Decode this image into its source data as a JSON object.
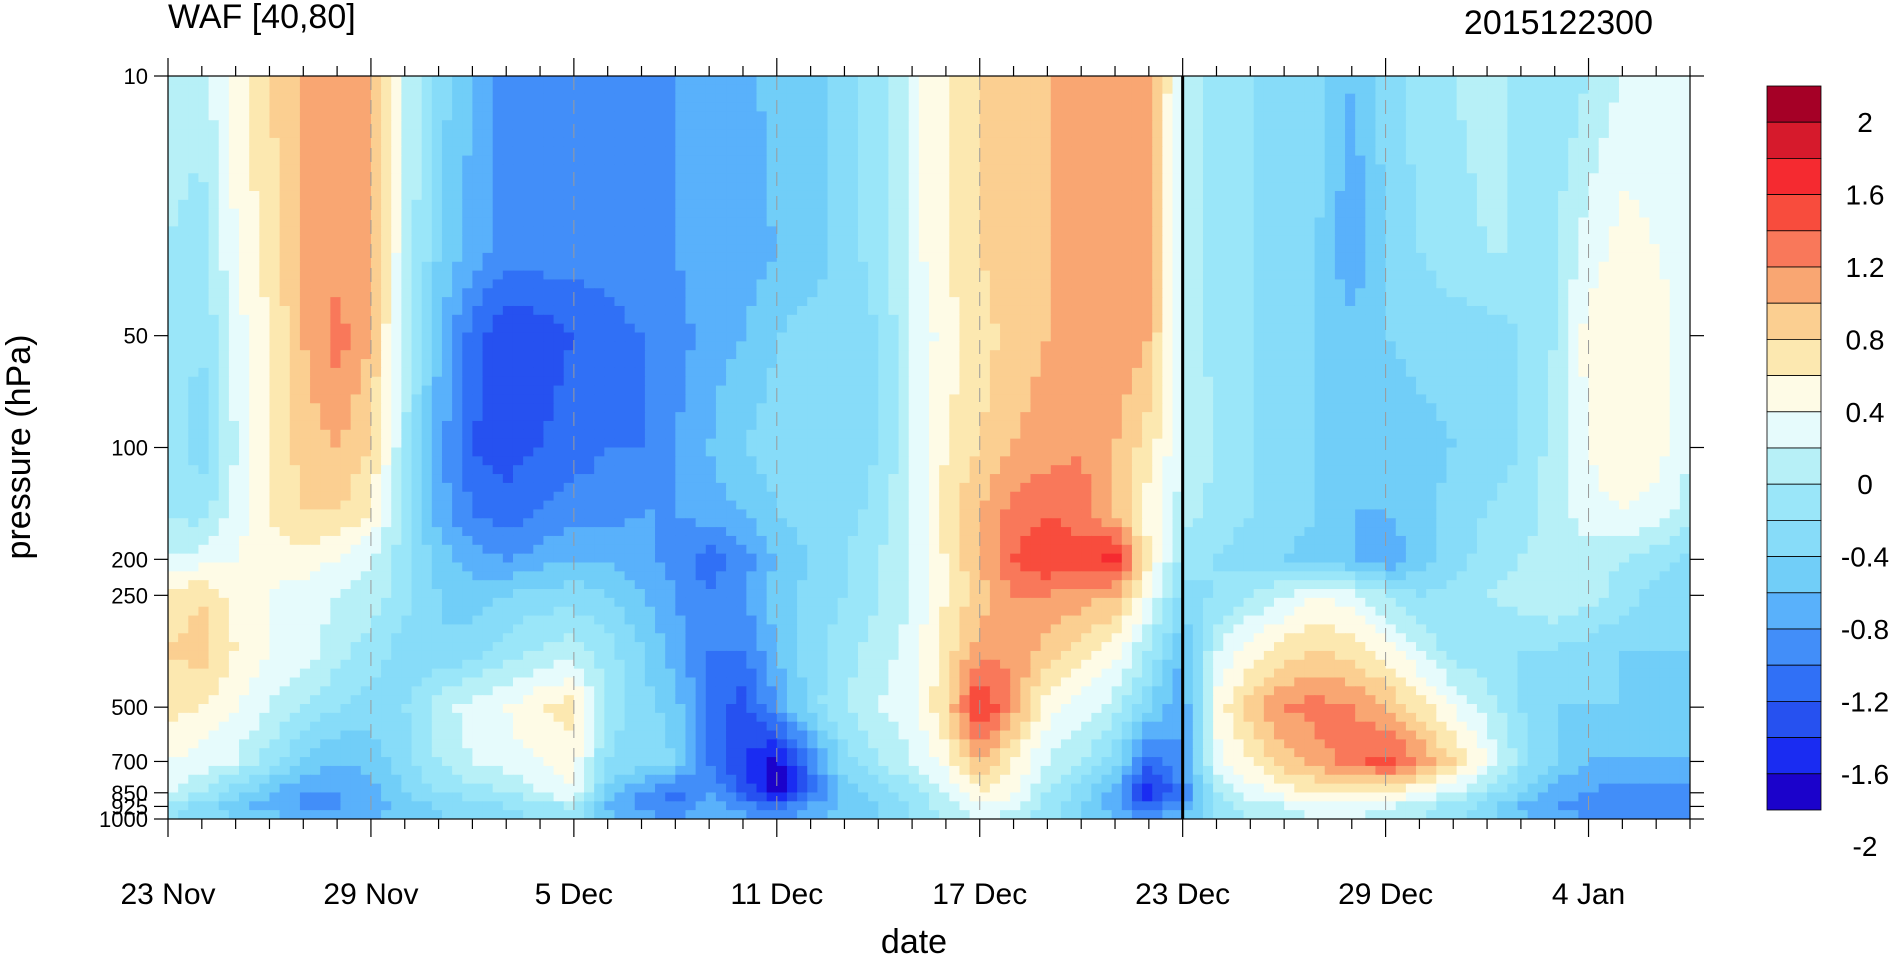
{
  "title_left": "WAF [40,80]",
  "title_right": "2015122300",
  "chart_data": {
    "type": "heatmap",
    "xlabel": "date",
    "ylabel": "pressure (hPa)",
    "x_tick_labels": [
      "23 Nov",
      "29 Nov",
      "5 Dec",
      "11 Dec",
      "17 Dec",
      "23 Dec",
      "29 Dec",
      "4 Jan"
    ],
    "x_tick_day_offsets": [
      0,
      6,
      12,
      18,
      24,
      30,
      36,
      42
    ],
    "x_range_days": [
      0,
      45
    ],
    "y_scale": "log",
    "y_range": [
      1000,
      10
    ],
    "y_tick_labels": [
      "10",
      "50",
      "100",
      "200",
      "250",
      "500",
      "700",
      "850",
      "925",
      "1000"
    ],
    "y_tick_values": [
      10,
      50,
      100,
      200,
      250,
      500,
      700,
      850,
      925,
      1000
    ],
    "marked_date": "23 Dec",
    "colorbar": {
      "labels": [
        "2",
        "1.6",
        "1.2",
        "0.8",
        "0.4",
        "0",
        "-0.4",
        "-0.8",
        "-1.2",
        "-1.6",
        "-2"
      ],
      "label_values": [
        2,
        1.6,
        1.2,
        0.8,
        0.4,
        0,
        -0.4,
        -0.8,
        -1.2,
        -1.6,
        -2
      ],
      "colors": [
        "#a50026",
        "#d61a2c",
        "#f52a30",
        "#f84c3d",
        "#f9785a",
        "#f9a672",
        "#fbcf91",
        "#fce8b0",
        "#fefbe6",
        "#e6fbfc",
        "#b7f0f7",
        "#9ae6f9",
        "#87dcf9",
        "#71cef8",
        "#59b1fb",
        "#428ef9",
        "#3070f6",
        "#2651f0",
        "#1a2cf2",
        "#1b02cb"
      ]
    },
    "values_days": [
      0,
      1,
      2,
      3,
      4,
      5,
      6,
      7,
      8,
      9,
      10,
      11,
      12,
      13,
      14,
      15,
      16,
      17,
      18,
      19,
      20,
      21,
      22,
      23,
      24,
      25,
      26,
      27,
      28,
      29,
      30,
      31,
      32,
      33,
      34,
      35,
      36,
      37,
      38,
      39,
      40,
      41,
      42,
      43,
      44,
      45
    ],
    "values_levels": [
      10,
      30,
      50,
      100,
      150,
      200,
      250,
      350,
      500,
      700,
      850,
      925,
      1000
    ],
    "values": [
      [
        -0.1,
        -0.1,
        0.3,
        0.6,
        0.8,
        0.9,
        0.8,
        0.0,
        -0.5,
        -0.8,
        -1.1,
        -1.1,
        -1.1,
        -1.0,
        -1.0,
        -1.0,
        -0.9,
        -0.9,
        -0.7,
        -0.7,
        -0.5,
        -0.3,
        0.1,
        0.4,
        0.6,
        0.7,
        0.8,
        0.9,
        0.9,
        0.9,
        0.0,
        -0.3,
        -0.4,
        -0.4,
        -0.5,
        -0.8,
        -0.5,
        -0.3,
        -0.2,
        -0.1,
        -0.3,
        -0.4,
        -0.2,
        0.0,
        0.1,
        0.1
      ],
      [
        -0.2,
        -0.3,
        0.2,
        0.5,
        0.8,
        0.9,
        0.8,
        0.0,
        -0.6,
        -0.9,
        -1.1,
        -1.1,
        -1.1,
        -1.1,
        -1.0,
        -1.0,
        -0.9,
        -0.9,
        -0.8,
        -0.7,
        -0.5,
        -0.3,
        0.1,
        0.4,
        0.6,
        0.7,
        0.8,
        0.9,
        0.9,
        0.8,
        0.0,
        -0.3,
        -0.4,
        -0.5,
        -0.6,
        -1.0,
        -0.6,
        -0.4,
        -0.3,
        -0.2,
        -0.2,
        -0.2,
        0.1,
        0.3,
        0.2,
        0.1
      ],
      [
        -0.3,
        -0.4,
        0.1,
        0.4,
        0.8,
        1.1,
        0.8,
        -0.1,
        -0.8,
        -1.3,
        -1.6,
        -1.5,
        -1.4,
        -1.3,
        -1.2,
        -1.1,
        -0.9,
        -0.8,
        -0.6,
        -0.5,
        -0.6,
        -0.4,
        0.0,
        0.3,
        0.5,
        0.7,
        0.8,
        0.9,
        1.0,
        0.8,
        0.0,
        -0.3,
        -0.4,
        -0.5,
        -0.6,
        -0.7,
        -0.6,
        -0.5,
        -0.5,
        -0.5,
        -0.4,
        -0.2,
        0.3,
        0.4,
        0.3,
        0.1
      ],
      [
        -0.3,
        -0.5,
        0.0,
        0.4,
        0.7,
        0.8,
        0.6,
        -0.2,
        -0.9,
        -1.4,
        -1.5,
        -1.4,
        -1.3,
        -1.2,
        -1.2,
        -1.0,
        -0.8,
        -0.6,
        -0.5,
        -0.6,
        -0.6,
        -0.4,
        0.0,
        0.4,
        0.6,
        0.8,
        0.9,
        1.0,
        0.8,
        0.5,
        0.0,
        -0.2,
        -0.4,
        -0.5,
        -0.6,
        -0.7,
        -0.8,
        -0.7,
        -0.6,
        -0.5,
        -0.4,
        -0.1,
        0.2,
        0.4,
        0.3,
        0.0
      ],
      [
        -0.2,
        -0.3,
        0.1,
        0.4,
        0.6,
        0.6,
        0.4,
        -0.3,
        -0.9,
        -1.2,
        -1.3,
        -1.2,
        -1.1,
        -1.1,
        -1.0,
        -1.0,
        -0.9,
        -0.8,
        -0.6,
        -0.5,
        -0.5,
        -0.3,
        0.0,
        0.5,
        0.8,
        1.1,
        1.2,
        1.1,
        0.8,
        0.3,
        -0.1,
        -0.3,
        -0.4,
        -0.5,
        -0.6,
        -0.8,
        -0.8,
        -0.7,
        -0.5,
        -0.4,
        -0.3,
        -0.1,
        0.1,
        0.2,
        0.1,
        -0.1
      ],
      [
        0.0,
        0.1,
        0.2,
        0.3,
        0.3,
        0.2,
        0.0,
        -0.3,
        -0.7,
        -0.9,
        -1.0,
        -0.9,
        -0.8,
        -0.8,
        -0.9,
        -1.1,
        -1.3,
        -1.1,
        -0.8,
        -0.6,
        -0.4,
        -0.2,
        0.0,
        0.4,
        0.8,
        1.2,
        1.4,
        1.3,
        1.5,
        0.4,
        -0.3,
        -0.4,
        -0.5,
        -0.6,
        -0.7,
        -0.8,
        -1.0,
        -0.7,
        -0.5,
        -0.3,
        -0.2,
        -0.1,
        -0.1,
        -0.2,
        -0.3,
        -0.5
      ],
      [
        0.4,
        0.6,
        0.3,
        0.2,
        0.1,
        0.0,
        -0.1,
        -0.3,
        -0.6,
        -0.7,
        -0.6,
        -0.5,
        -0.5,
        -0.6,
        -0.8,
        -1.0,
        -1.2,
        -1.0,
        -0.7,
        -0.5,
        -0.4,
        -0.2,
        0.0,
        0.4,
        0.7,
        1.0,
        1.0,
        0.9,
        0.8,
        0.2,
        -0.5,
        -0.4,
        -0.2,
        0.0,
        0.2,
        0.1,
        -0.2,
        -0.4,
        -0.3,
        -0.2,
        -0.1,
        0.0,
        -0.1,
        -0.3,
        -0.5,
        -0.6
      ],
      [
        0.6,
        0.7,
        0.4,
        0.2,
        0.1,
        -0.1,
        -0.3,
        -0.5,
        -0.6,
        -0.5,
        -0.3,
        -0.2,
        -0.1,
        -0.3,
        -0.6,
        -0.9,
        -1.2,
        -1.2,
        -0.8,
        -0.5,
        -0.3,
        -0.1,
        0.1,
        0.5,
        0.9,
        1.0,
        0.7,
        0.5,
        0.3,
        -0.2,
        -0.8,
        0.0,
        0.3,
        0.5,
        0.6,
        0.5,
        0.3,
        0.0,
        -0.3,
        -0.4,
        -0.4,
        -0.4,
        -0.5,
        -0.6,
        -0.6,
        -0.6
      ],
      [
        0.5,
        0.4,
        0.2,
        0.0,
        -0.2,
        -0.4,
        -0.5,
        -0.4,
        -0.1,
        0.1,
        0.2,
        0.4,
        0.5,
        -0.3,
        -0.5,
        -0.7,
        -1.3,
        -1.5,
        -1.0,
        -0.5,
        -0.2,
        0.0,
        0.1,
        0.6,
        1.5,
        0.9,
        0.3,
        0.1,
        -0.1,
        -0.6,
        -1.0,
        0.3,
        0.7,
        1.0,
        1.1,
        1.0,
        0.8,
        0.5,
        0.2,
        -0.1,
        -0.4,
        -0.6,
        -0.6,
        -0.6,
        -0.7,
        -0.7
      ],
      [
        0.2,
        0.1,
        0.0,
        -0.3,
        -0.6,
        -0.8,
        -0.7,
        -0.5,
        -0.2,
        0.0,
        0.1,
        0.2,
        0.3,
        -0.4,
        -0.5,
        -0.6,
        -1.2,
        -1.6,
        -1.9,
        -1.2,
        -0.5,
        -0.2,
        0.0,
        0.3,
        0.8,
        0.4,
        0.0,
        -0.2,
        -0.5,
        -1.3,
        -1.0,
        0.1,
        0.4,
        0.7,
        0.9,
        1.1,
        1.3,
        1.0,
        0.6,
        0.2,
        -0.3,
        -0.6,
        -0.8,
        -0.8,
        -0.8,
        -0.8
      ],
      [
        0.0,
        -0.2,
        -0.5,
        -0.8,
        -1.0,
        -1.0,
        -0.9,
        -0.6,
        -0.4,
        -0.3,
        -0.2,
        0.0,
        0.2,
        -0.7,
        -1.0,
        -1.3,
        -1.0,
        -1.4,
        -2.0,
        -1.3,
        -0.7,
        -0.5,
        -0.3,
        0.0,
        0.4,
        0.2,
        -0.2,
        -0.5,
        -0.9,
        -1.8,
        -1.2,
        -0.2,
        0.1,
        0.3,
        0.4,
        0.5,
        0.4,
        0.2,
        0.0,
        -0.3,
        -0.6,
        -0.9,
        -1.0,
        -1.1,
        -1.1,
        -1.1
      ],
      [
        -0.3,
        -0.5,
        -0.7,
        -0.9,
        -1.0,
        -1.0,
        -0.9,
        -0.7,
        -0.6,
        -0.5,
        -0.4,
        -0.3,
        -0.2,
        -0.8,
        -1.1,
        -1.2,
        -0.9,
        -1.1,
        -1.3,
        -1.0,
        -0.7,
        -0.6,
        -0.4,
        -0.1,
        0.2,
        0.1,
        -0.3,
        -0.6,
        -0.9,
        -1.4,
        -1.0,
        -0.3,
        -0.1,
        0.0,
        0.1,
        0.1,
        0.0,
        -0.1,
        -0.3,
        -0.5,
        -0.8,
        -1.0,
        -1.1,
        -1.2,
        -1.2,
        -1.2
      ],
      [
        -0.4,
        -0.5,
        -0.6,
        -0.7,
        -0.8,
        -0.8,
        -0.8,
        -0.7,
        -0.6,
        -0.5,
        -0.5,
        -0.4,
        -0.4,
        -0.7,
        -0.9,
        -1.0,
        -0.8,
        -0.9,
        -1.0,
        -0.9,
        -0.7,
        -0.6,
        -0.4,
        -0.2,
        0.0,
        -0.1,
        -0.3,
        -0.6,
        -0.8,
        -1.0,
        -0.8,
        -0.4,
        -0.2,
        -0.1,
        0.0,
        0.0,
        -0.1,
        -0.2,
        -0.3,
        -0.5,
        -0.7,
        -0.9,
        -1.0,
        -1.1,
        -1.1,
        -1.1
      ]
    ]
  }
}
